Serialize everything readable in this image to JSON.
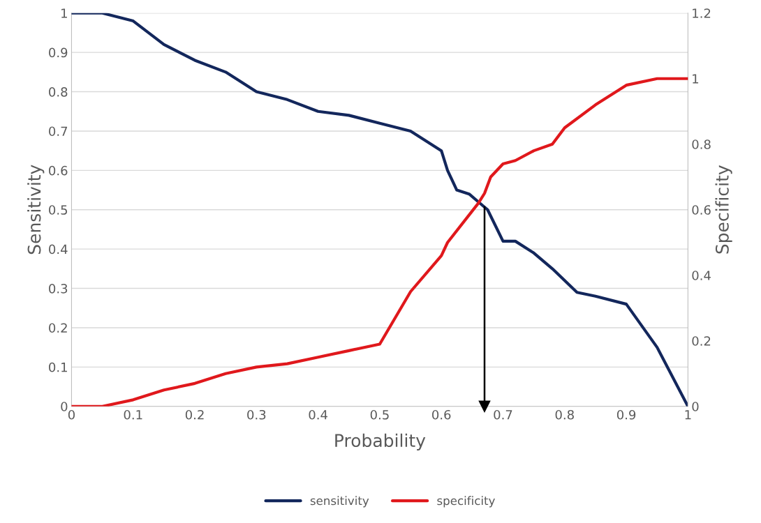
{
  "chart_data": {
    "type": "line",
    "xlabel": "Probability",
    "ylabel": "Sensitivity",
    "y2label": "Specificity",
    "xlim": [
      0,
      1
    ],
    "xticks": [
      0,
      0.1,
      0.2,
      0.3,
      0.4,
      0.5,
      0.6,
      0.7,
      0.8,
      0.9,
      1
    ],
    "ylim": [
      0,
      1
    ],
    "yticks": [
      0,
      0.1,
      0.2,
      0.3,
      0.4,
      0.5,
      0.6,
      0.7,
      0.8,
      0.9,
      1
    ],
    "y2lim": [
      0,
      1.2
    ],
    "y2ticks": [
      0,
      0.2,
      0.4,
      0.6,
      0.8,
      1,
      1.2
    ],
    "grid": "y",
    "legend": "bottom",
    "line_style": "solid",
    "ref_lines": [
      {
        "axis": "x",
        "value": 0.67,
        "color": "#000000"
      }
    ],
    "series": [
      {
        "name": "sensitivity",
        "color": "#13275c",
        "x": [
          0,
          0.05,
          0.1,
          0.15,
          0.2,
          0.25,
          0.3,
          0.35,
          0.4,
          0.45,
          0.5,
          0.55,
          0.6,
          0.61,
          0.625,
          0.645,
          0.66,
          0.675,
          0.7,
          0.72,
          0.75,
          0.78,
          0.82,
          0.85,
          0.9,
          0.95,
          1
        ],
        "values": [
          1,
          1,
          0.98,
          0.92,
          0.88,
          0.85,
          0.8,
          0.78,
          0.75,
          0.74,
          0.72,
          0.7,
          0.65,
          0.6,
          0.55,
          0.54,
          0.52,
          0.5,
          0.42,
          0.42,
          0.39,
          0.35,
          0.29,
          0.28,
          0.26,
          0.15,
          0
        ]
      },
      {
        "name": "specificity",
        "color": "#e0181c",
        "axis": "y2",
        "x": [
          0,
          0.05,
          0.1,
          0.15,
          0.2,
          0.25,
          0.3,
          0.35,
          0.4,
          0.45,
          0.5,
          0.55,
          0.6,
          0.61,
          0.66,
          0.67,
          0.68,
          0.7,
          0.72,
          0.75,
          0.78,
          0.8,
          0.85,
          0.9,
          0.95,
          1
        ],
        "values": [
          0,
          0,
          0.02,
          0.05,
          0.07,
          0.1,
          0.12,
          0.13,
          0.15,
          0.17,
          0.19,
          0.35,
          0.46,
          0.5,
          0.62,
          0.65,
          0.7,
          0.74,
          0.75,
          0.78,
          0.8,
          0.85,
          0.92,
          0.98,
          1,
          1
        ]
      }
    ]
  }
}
